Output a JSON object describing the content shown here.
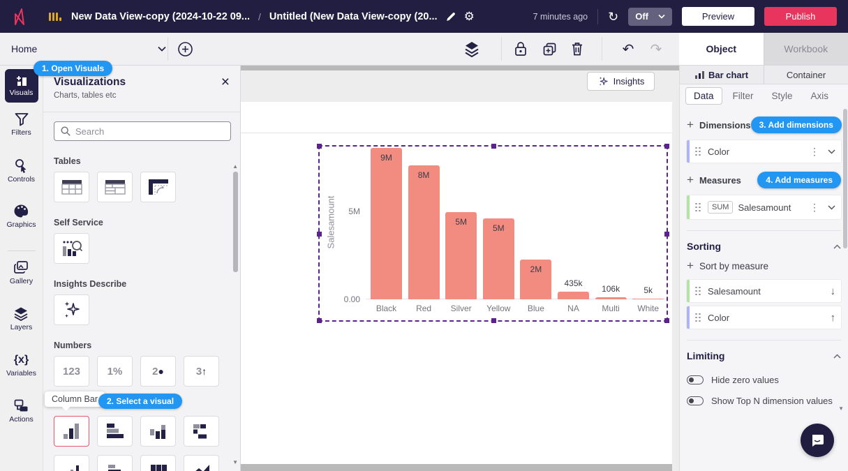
{
  "topbar": {
    "doc_title": "New Data View-copy (2024-10-22 09...",
    "breadcrumb_separator": "/",
    "page_title": "Untitled (New Data View-copy (20...",
    "saved_ago": "7 minutes ago",
    "refresh_state": "Off",
    "preview": "Preview",
    "publish": "Publish"
  },
  "toolbar": {
    "home": "Home",
    "object_tab": "Object",
    "workbook_tab": "Workbook"
  },
  "rail": {
    "items": [
      {
        "label": "Visuals"
      },
      {
        "label": "Filters"
      },
      {
        "label": "Controls"
      },
      {
        "label": "Graphics"
      },
      {
        "label": "Gallery"
      },
      {
        "label": "Layers"
      },
      {
        "label": "Variables"
      },
      {
        "label": "Actions"
      }
    ]
  },
  "visuals_panel": {
    "callout_open": "1. Open Visuals",
    "title": "Visualizations",
    "subtitle": "Charts, tables etc",
    "search_placeholder": "Search",
    "section_tables": "Tables",
    "section_self_service": "Self Service",
    "section_insights": "Insights Describe",
    "section_numbers": "Numbers",
    "numbers": [
      {
        "num": "123",
        "mark": ""
      },
      {
        "num": "1%",
        "mark": ""
      },
      {
        "num": "2",
        "mark": "●"
      },
      {
        "num": "3",
        "mark": "↑"
      }
    ],
    "tooltip": "Column Bar",
    "callout_select": "2. Select a visual"
  },
  "canvas": {
    "insights_button": "Insights"
  },
  "chart_data": {
    "type": "bar",
    "categories": [
      "Black",
      "Red",
      "Silver",
      "Yellow",
      "Blue",
      "NA",
      "Multi",
      "White"
    ],
    "values": [
      8600000,
      7600000,
      4950000,
      4600000,
      2250000,
      435000,
      106000,
      5000
    ],
    "value_labels": [
      "9M",
      "8M",
      "5M",
      "5M",
      "2M",
      "435k",
      "106k",
      "5k"
    ],
    "ylabel": "Salesamount",
    "yticks": [
      {
        "label": "5M",
        "value": 5000000
      },
      {
        "label": "0.00",
        "value": 0
      }
    ],
    "ylim": [
      0,
      8800000
    ],
    "bar_color": "#f28b80",
    "grid": false,
    "legend": "none"
  },
  "inspector": {
    "chart_tab": "Bar chart",
    "container_tab": "Container",
    "tabs": [
      "Data",
      "Filter",
      "Style",
      "Axis"
    ],
    "active_tab": "Data",
    "dimensions": "Dimensions",
    "callout_dimensions": "3. Add dimensions",
    "dimension_fields": [
      {
        "name": "Color"
      }
    ],
    "measures": "Measures",
    "callout_measures": "4. Add measures",
    "measure_fields": [
      {
        "agg": "SUM",
        "name": "Salesamount"
      }
    ],
    "sorting": "Sorting",
    "sort_by_measure": "Sort by measure",
    "sort_fields": [
      {
        "name": "Salesamount",
        "arrow": "↓"
      },
      {
        "name": "Color",
        "arrow": "↑"
      }
    ],
    "limiting": "Limiting",
    "toggles": [
      {
        "label": "Hide zero values"
      },
      {
        "label": "Show Top N dimension values"
      }
    ]
  },
  "icons": {
    "close": "×",
    "undo": "↶",
    "redo": "↷",
    "refresh": "↻",
    "kebab": "⋮",
    "scroll_up": "▲",
    "scroll_down": "▼"
  }
}
